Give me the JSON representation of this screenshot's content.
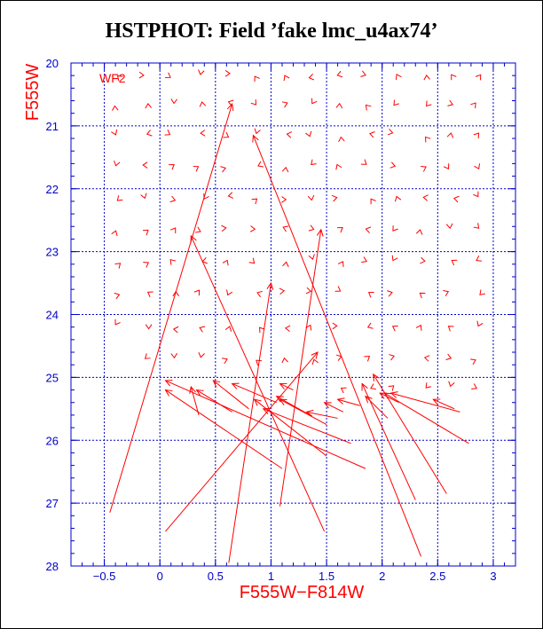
{
  "title": "HSTPHOT: Field ’fake lmc_u4ax74’",
  "chart_data": {
    "type": "vector-field",
    "panel_label": "WF2",
    "xlabel": "F555W−F814W",
    "ylabel": "F555W",
    "xlim": [
      -0.8,
      3.2
    ],
    "ylim": [
      28,
      20
    ],
    "x_ticks": [
      -0.5,
      0,
      0.5,
      1,
      1.5,
      2,
      2.5,
      3
    ],
    "x_tick_labels": [
      "−0.5",
      "0",
      "0.5",
      "1",
      "1.5",
      "2",
      "2.5",
      "3"
    ],
    "y_ticks": [
      20,
      21,
      22,
      23,
      24,
      25,
      26,
      27,
      28
    ],
    "y_tick_labels": [
      "20",
      "21",
      "22",
      "23",
      "24",
      "25",
      "26",
      "27",
      "28"
    ],
    "grid": true,
    "colors": {
      "axes": "#0000cc",
      "data": "#ff0000",
      "grid": "#0000cc"
    },
    "long_vectors": [
      {
        "x0": -0.45,
        "y0": 27.15,
        "x1": 0.65,
        "y1": 20.65
      },
      {
        "x0": 0.05,
        "y0": 27.45,
        "x1": 1.42,
        "y1": 24.6
      },
      {
        "x0": 0.62,
        "y0": 27.95,
        "x1": 1.0,
        "y1": 23.5
      },
      {
        "x0": 1.08,
        "y0": 27.05,
        "x1": 1.45,
        "y1": 22.65
      },
      {
        "x0": 1.48,
        "y0": 27.45,
        "x1": 0.28,
        "y1": 22.75
      },
      {
        "x0": 2.35,
        "y0": 27.85,
        "x1": 0.84,
        "y1": 21.15
      },
      {
        "x0": 1.85,
        "y0": 26.45,
        "x1": 0.05,
        "y1": 25.05
      },
      {
        "x0": 1.1,
        "y0": 26.45,
        "x1": 0.05,
        "y1": 25.2
      },
      {
        "x0": 0.35,
        "y0": 25.6,
        "x1": 0.28,
        "y1": 25.15
      },
      {
        "x0": 0.65,
        "y0": 25.55,
        "x1": 0.33,
        "y1": 25.2
      },
      {
        "x0": 0.8,
        "y0": 25.5,
        "x1": 0.48,
        "y1": 25.05
      },
      {
        "x0": 1.05,
        "y0": 25.4,
        "x1": 0.65,
        "y1": 25.1
      },
      {
        "x0": 1.5,
        "y0": 26.25,
        "x1": 0.85,
        "y1": 25.35
      },
      {
        "x0": 1.72,
        "y0": 26.05,
        "x1": 0.93,
        "y1": 25.5
      },
      {
        "x0": 1.35,
        "y0": 25.6,
        "x1": 1.05,
        "y1": 25.3
      },
      {
        "x0": 1.2,
        "y0": 25.2,
        "x1": 1.08,
        "y1": 25.1
      },
      {
        "x0": 1.5,
        "y0": 25.75,
        "x1": 1.08,
        "y1": 25.35
      },
      {
        "x0": 1.6,
        "y0": 25.65,
        "x1": 1.32,
        "y1": 25.55
      },
      {
        "x0": 1.65,
        "y0": 25.55,
        "x1": 1.48,
        "y1": 25.4
      },
      {
        "x0": 1.8,
        "y0": 25.45,
        "x1": 1.6,
        "y1": 25.35
      },
      {
        "x0": 2.3,
        "y0": 26.95,
        "x1": 1.82,
        "y1": 25.1
      },
      {
        "x0": 2.58,
        "y0": 26.85,
        "x1": 1.92,
        "y1": 24.95
      },
      {
        "x0": 2.05,
        "y0": 25.65,
        "x1": 1.85,
        "y1": 25.3
      },
      {
        "x0": 2.15,
        "y0": 25.4,
        "x1": 1.98,
        "y1": 25.25
      },
      {
        "x0": 2.78,
        "y0": 26.05,
        "x1": 2.02,
        "y1": 25.25
      },
      {
        "x0": 2.7,
        "y0": 25.55,
        "x1": 2.08,
        "y1": 25.25
      },
      {
        "x0": 2.65,
        "y0": 25.5,
        "x1": 2.46,
        "y1": 25.35
      }
    ]
  }
}
